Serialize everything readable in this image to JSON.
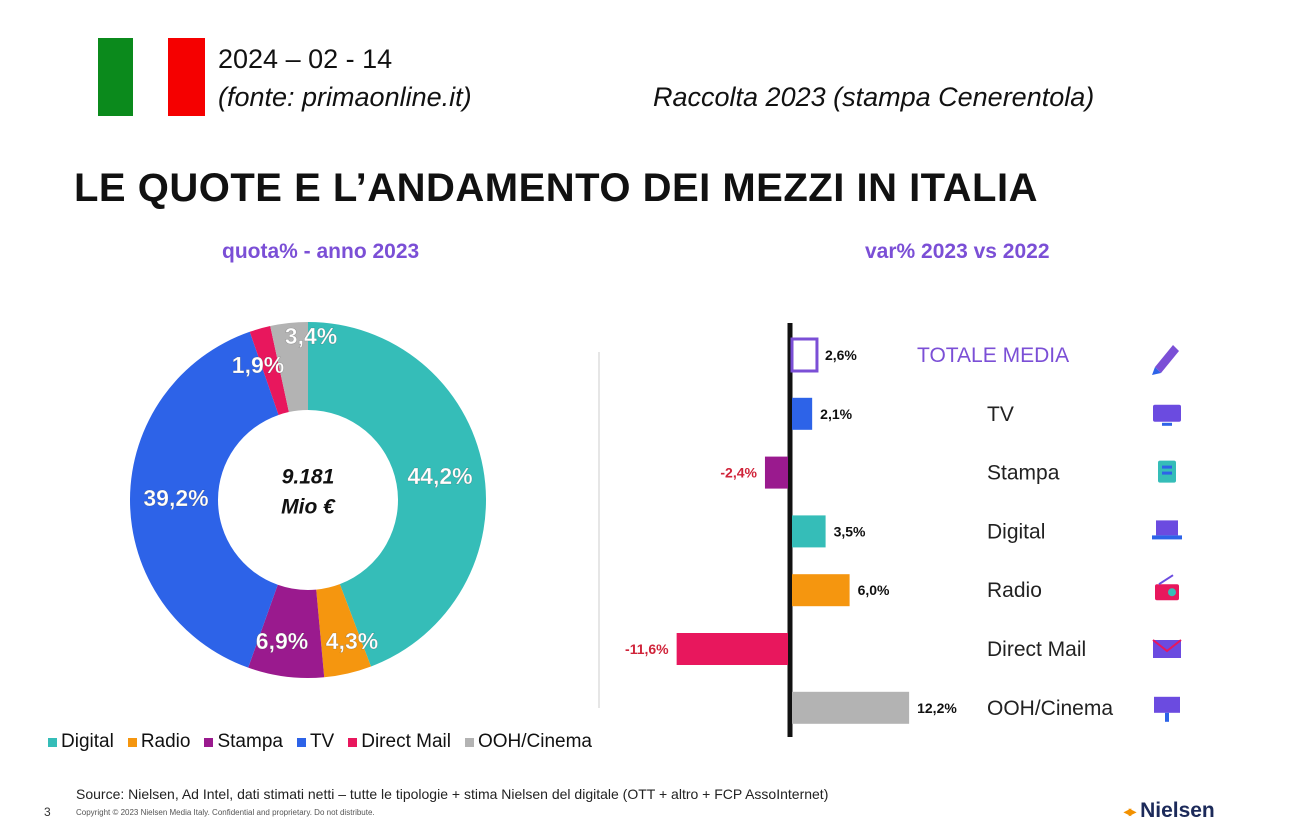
{
  "header": {
    "date": "2024 – 02 - 14",
    "source_note": "(fonte: primaonline.it)",
    "caption": "Raccolta 2023 (stampa Cenerentola)"
  },
  "title": "LE QUOTE E L’ANDAMENTO DEI MEZZI IN ITALIA",
  "colors": {
    "flag_green": "#0b8a1c",
    "flag_red": "#f50000",
    "accent_purple": "#7b4fd6"
  },
  "chart_data": [
    {
      "type": "pie",
      "title": "quota% - anno 2023",
      "center_label": [
        "9.181",
        "Mio €"
      ],
      "categories": [
        "Digital",
        "Radio",
        "Stampa",
        "TV",
        "Direct Mail",
        "OOH/Cinema"
      ],
      "values": [
        44.2,
        4.3,
        6.9,
        39.2,
        1.9,
        3.4
      ],
      "labels": [
        "44,2%",
        "4,3%",
        "6,9%",
        "39,2%",
        "1,9%",
        "3,4%"
      ],
      "colors": [
        "#35bdb8",
        "#f5960f",
        "#9a1a8e",
        "#2d63e8",
        "#e8175d",
        "#b3b3b3"
      ],
      "legend": "bottom"
    },
    {
      "type": "bar",
      "orientation": "horizontal",
      "title": "var% 2023 vs 2022",
      "categories": [
        "TOTALE MEDIA",
        "TV",
        "Stampa",
        "Digital",
        "Radio",
        "Direct Mail",
        "OOH/Cinema"
      ],
      "values": [
        2.6,
        2.1,
        -2.4,
        3.5,
        6.0,
        -11.6,
        12.2
      ],
      "labels": [
        "2,6%",
        "2,1%",
        "-2,4%",
        "3,5%",
        "6,0%",
        "-11,6%",
        "12,2%"
      ],
      "colors": [
        "#ffffff",
        "#2d63e8",
        "#9a1a8e",
        "#35bdb8",
        "#f5960f",
        "#e8175d",
        "#b3b3b3"
      ],
      "icons": [
        "pencil-icon",
        "tv-icon",
        "newspaper-icon",
        "laptop-icon",
        "radio-icon",
        "envelope-icon",
        "billboard-icon"
      ]
    }
  ],
  "legend_items": [
    "Digital",
    "Radio",
    "Stampa",
    "TV",
    "Direct Mail",
    "OOH/Cinema"
  ],
  "footer": {
    "source": "Source: Nielsen, Ad Intel, dati stimati netti – tutte le tipologie + stima Nielsen del digitale (OTT  + altro +  FCP AssoInternet)",
    "copyright": "Copyright © 2023 Nielsen Media Italy. Confidential and proprietary. Do not distribute.",
    "page": "3",
    "brand": "Nielsen"
  }
}
